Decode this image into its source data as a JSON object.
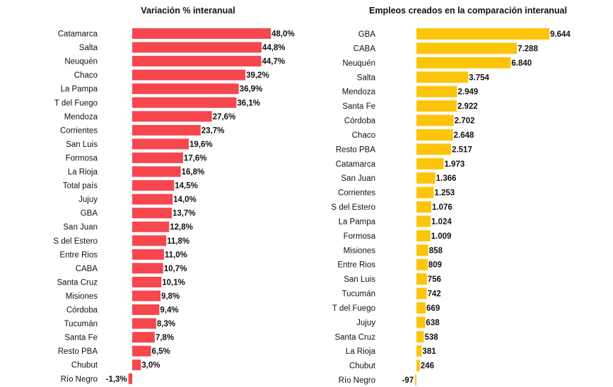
{
  "chart_data": [
    {
      "type": "bar",
      "orientation": "horizontal",
      "title": "Variación % interanual",
      "color": "#f5474d",
      "unit": "%",
      "decimals": 1,
      "categories": [
        "Catamarca",
        "Salta",
        "Neuquén",
        "Chaco",
        "La Pampa",
        "T del Fuego",
        "Mendoza",
        "Corrientes",
        "San Luis",
        "Formosa",
        "La Rioja",
        "Total país",
        "Jujuy",
        "GBA",
        "San Juan",
        "S del Estero",
        "Entre Rios",
        "CABA",
        "Santa Cruz",
        "Misiones",
        "Córdoba",
        "Tucumán",
        "Santa Fe",
        "Resto PBA",
        "Chubut",
        "Río Negro"
      ],
      "values": [
        48.0,
        44.8,
        44.7,
        39.2,
        36.9,
        36.1,
        27.6,
        23.7,
        19.6,
        17.6,
        16.8,
        14.5,
        14.0,
        13.7,
        12.8,
        11.8,
        11.0,
        10.7,
        10.1,
        9.8,
        9.4,
        8.3,
        7.8,
        6.5,
        3.0,
        -1.3
      ],
      "value_labels": [
        "48,0%",
        "44,8%",
        "44,7%",
        "39,2%",
        "36,9%",
        "36,1%",
        "27,6%",
        "23,7%",
        "19,6%",
        "17,6%",
        "16,8%",
        "14,5%",
        "14,0%",
        "13,7%",
        "12,8%",
        "11,8%",
        "11,0%",
        "10,7%",
        "10,1%",
        "9,8%",
        "9,4%",
        "8,3%",
        "7,8%",
        "6,5%",
        "3,0%",
        "-1,3%"
      ]
    },
    {
      "type": "bar",
      "orientation": "horizontal",
      "title": "Empleos creados en la comparación interanual",
      "color": "#fcc50b",
      "categories": [
        "GBA",
        "CABA",
        "Neuquén",
        "Salta",
        "Mendoza",
        "Santa Fe",
        "Córdoba",
        "Chaco",
        "Resto PBA",
        "Catamarca",
        "San Juan",
        "Corrientes",
        "S del Estero",
        "La Pampa",
        "Formosa",
        "Misiones",
        "Entre Rios",
        "San Luis",
        "Tucumán",
        "T del Fuego",
        "Jujuy",
        "Santa Cruz",
        "La Rioja",
        "Chubut",
        "Río Negro"
      ],
      "values": [
        9644,
        7288,
        6840,
        3754,
        2949,
        2922,
        2702,
        2648,
        2517,
        1973,
        1366,
        1253,
        1076,
        1024,
        1009,
        858,
        809,
        756,
        742,
        669,
        638,
        538,
        381,
        246,
        -97
      ],
      "value_labels": [
        "9.644",
        "7.288",
        "6.840",
        "3.754",
        "2.949",
        "2.922",
        "2.702",
        "2.648",
        "2.517",
        "1.973",
        "1.366",
        "1.253",
        "1.076",
        "1.024",
        "1.009",
        "858",
        "809",
        "756",
        "742",
        "669",
        "638",
        "538",
        "381",
        "246",
        "-97"
      ]
    }
  ]
}
